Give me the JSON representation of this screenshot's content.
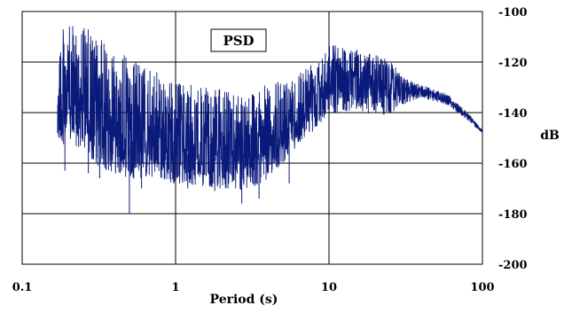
{
  "chart_data": {
    "type": "line",
    "title": "",
    "legend": {
      "entries": [
        "PSD"
      ],
      "placement": "top-center"
    },
    "xlabel": "Period (s)",
    "ylabel": "dB",
    "x_scale": "log",
    "xlim": [
      0.1,
      100
    ],
    "ylim": [
      -200,
      -100
    ],
    "x_ticks": [
      {
        "value": 0.1,
        "label": "0.1"
      },
      {
        "value": 1,
        "label": "1"
      },
      {
        "value": 10,
        "label": "10"
      },
      {
        "value": 100,
        "label": "100"
      }
    ],
    "y_ticks": [
      {
        "value": -100,
        "label": "-100"
      },
      {
        "value": -120,
        "label": "-120"
      },
      {
        "value": -140,
        "label": "-140"
      },
      {
        "value": -160,
        "label": "-160"
      },
      {
        "value": -180,
        "label": "-180"
      },
      {
        "value": -200,
        "label": "-200"
      }
    ],
    "grid": true,
    "series": [
      {
        "name": "PSD",
        "color": "#0a1a7a",
        "envelope_upper": [
          [
            0.17,
            -107
          ],
          [
            0.2,
            -106
          ],
          [
            0.25,
            -105
          ],
          [
            0.3,
            -110
          ],
          [
            0.4,
            -114
          ],
          [
            0.5,
            -118
          ],
          [
            0.7,
            -123
          ],
          [
            1.0,
            -128
          ],
          [
            1.5,
            -130
          ],
          [
            2.0,
            -131
          ],
          [
            3.0,
            -131
          ],
          [
            4.0,
            -129
          ],
          [
            5.0,
            -127
          ],
          [
            6.0,
            -125
          ],
          [
            8.0,
            -118
          ],
          [
            10.0,
            -112
          ],
          [
            15.0,
            -115
          ],
          [
            20.0,
            -117
          ],
          [
            25.0,
            -119
          ],
          [
            30.0,
            -126
          ],
          [
            40.0,
            -129
          ],
          [
            60.0,
            -133
          ],
          [
            80.0,
            -140
          ],
          [
            100.0,
            -147
          ]
        ],
        "envelope_lower": [
          [
            0.17,
            -153
          ],
          [
            0.2,
            -152
          ],
          [
            0.25,
            -155
          ],
          [
            0.3,
            -161
          ],
          [
            0.4,
            -164
          ],
          [
            0.5,
            -166
          ],
          [
            0.7,
            -166
          ],
          [
            1.0,
            -168
          ],
          [
            1.5,
            -169
          ],
          [
            2.0,
            -170
          ],
          [
            3.0,
            -171
          ],
          [
            4.0,
            -166
          ],
          [
            5.0,
            -160
          ],
          [
            6.0,
            -154
          ],
          [
            8.0,
            -147
          ],
          [
            10.0,
            -140
          ],
          [
            15.0,
            -139
          ],
          [
            20.0,
            -141
          ],
          [
            25.0,
            -141
          ],
          [
            30.0,
            -137
          ],
          [
            40.0,
            -134
          ],
          [
            60.0,
            -137
          ],
          [
            80.0,
            -143
          ],
          [
            100.0,
            -148
          ]
        ],
        "spikes_down": [
          [
            0.19,
            -163
          ],
          [
            0.27,
            -164
          ],
          [
            0.32,
            -166
          ],
          [
            0.5,
            -180
          ],
          [
            0.6,
            -170
          ],
          [
            1.2,
            -170
          ],
          [
            1.8,
            -171
          ],
          [
            2.7,
            -176
          ],
          [
            3.5,
            -174
          ],
          [
            5.5,
            -168
          ]
        ]
      }
    ]
  }
}
